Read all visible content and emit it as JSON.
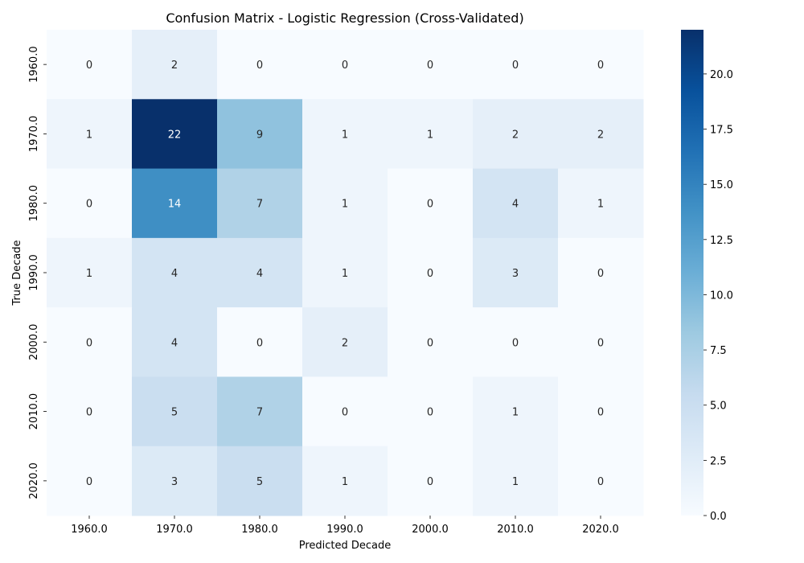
{
  "chart_data": {
    "type": "heatmap",
    "title": "Confusion Matrix - Logistic Regression (Cross-Validated)",
    "xlabel": "Predicted Decade",
    "ylabel": "True Decade",
    "x_categories": [
      "1960.0",
      "1970.0",
      "1980.0",
      "1990.0",
      "2000.0",
      "2010.0",
      "2020.0"
    ],
    "y_categories": [
      "1960.0",
      "1970.0",
      "1980.0",
      "1990.0",
      "2000.0",
      "2010.0",
      "2020.0"
    ],
    "values": [
      [
        0,
        2,
        0,
        0,
        0,
        0,
        0
      ],
      [
        1,
        22,
        9,
        1,
        1,
        2,
        2
      ],
      [
        0,
        14,
        7,
        1,
        0,
        4,
        1
      ],
      [
        1,
        4,
        4,
        1,
        0,
        3,
        0
      ],
      [
        0,
        4,
        0,
        2,
        0,
        0,
        0
      ],
      [
        0,
        5,
        7,
        0,
        0,
        1,
        0
      ],
      [
        0,
        3,
        5,
        1,
        0,
        1,
        0
      ]
    ],
    "colorbar": {
      "min": 0,
      "max": 22,
      "ticks": [
        "0.0",
        "2.5",
        "5.0",
        "7.5",
        "10.0",
        "12.5",
        "15.0",
        "17.5",
        "20.0"
      ],
      "colormap": "Blues"
    },
    "colors": {
      "low": "#f7fbff",
      "high": "#08306b",
      "text_dark": "#262626",
      "text_light": "#ffffff"
    }
  }
}
